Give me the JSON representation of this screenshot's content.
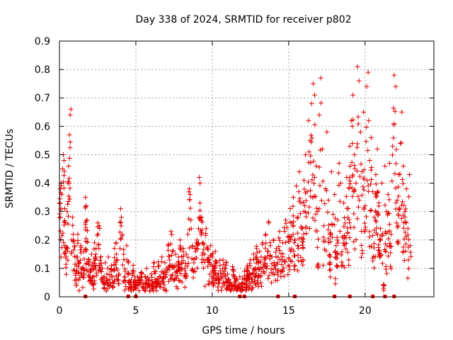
{
  "chart_data": {
    "type": "scatter",
    "title": "Day 338 of 2024, SRMTID for receiver p802",
    "xlabel": "GPS time / hours",
    "ylabel": "SRMTID / TECUs",
    "xlim": [
      0,
      24.5
    ],
    "ylim": [
      0,
      0.9
    ],
    "xticks": [
      0,
      5,
      10,
      15,
      20
    ],
    "yticks": [
      0,
      0.1,
      0.2,
      0.3,
      0.4,
      0.5,
      0.6,
      0.7,
      0.8,
      0.9
    ],
    "ytick_labels": [
      "0",
      "0.1",
      "0.2",
      "0.3",
      "0.4",
      "0.5",
      "0.6",
      "0.7",
      "0.8",
      "0.9"
    ],
    "grid": true,
    "marker": "+",
    "color": "#e00000",
    "series": [
      {
        "name": "SRMTID",
        "points": [
          [
            0.0,
            0.33
          ],
          [
            0.05,
            0.38
          ],
          [
            0.1,
            0.4
          ],
          [
            0.15,
            0.36
          ],
          [
            0.2,
            0.45
          ],
          [
            0.25,
            0.5
          ],
          [
            0.3,
            0.48
          ],
          [
            0.35,
            0.31
          ],
          [
            0.4,
            0.26
          ],
          [
            0.45,
            0.17
          ],
          [
            0.5,
            0.3
          ],
          [
            0.55,
            0.4
          ],
          [
            0.6,
            0.46
          ],
          [
            0.65,
            0.57
          ],
          [
            0.7,
            0.64
          ],
          [
            0.75,
            0.66
          ],
          [
            0.8,
            0.2
          ],
          [
            0.85,
            0.28
          ],
          [
            0.9,
            0.22
          ],
          [
            1.0,
            0.18
          ],
          [
            1.1,
            0.14
          ],
          [
            1.2,
            0.22
          ],
          [
            1.3,
            0.12
          ],
          [
            1.4,
            0.18
          ],
          [
            1.5,
            0.1
          ],
          [
            1.6,
            0.16
          ],
          [
            1.7,
            0.35
          ],
          [
            1.75,
            0.32
          ],
          [
            1.8,
            0.27
          ],
          [
            1.9,
            0.13
          ],
          [
            2.0,
            0.09
          ],
          [
            2.1,
            0.15
          ],
          [
            2.2,
            0.12
          ],
          [
            2.3,
            0.19
          ],
          [
            2.4,
            0.17
          ],
          [
            2.5,
            0.26
          ],
          [
            2.6,
            0.25
          ],
          [
            2.7,
            0.14
          ],
          [
            2.8,
            0.1
          ],
          [
            2.9,
            0.07
          ],
          [
            3.0,
            0.12
          ],
          [
            3.1,
            0.08
          ],
          [
            3.2,
            0.14
          ],
          [
            3.3,
            0.06
          ],
          [
            3.4,
            0.11
          ],
          [
            3.5,
            0.05
          ],
          [
            3.6,
            0.17
          ],
          [
            3.7,
            0.19
          ],
          [
            3.8,
            0.13
          ],
          [
            3.9,
            0.08
          ],
          [
            4.0,
            0.31
          ],
          [
            4.05,
            0.28
          ],
          [
            4.1,
            0.22
          ],
          [
            4.2,
            0.15
          ],
          [
            4.3,
            0.09
          ],
          [
            4.4,
            0.18
          ],
          [
            4.5,
            0.12
          ],
          [
            4.6,
            0.05
          ],
          [
            4.7,
            0.06
          ],
          [
            4.8,
            0.09
          ],
          [
            4.9,
            0.05
          ],
          [
            5.0,
            0.04
          ],
          [
            5.1,
            0.07
          ],
          [
            5.2,
            0.05
          ],
          [
            5.4,
            0.08
          ],
          [
            5.5,
            0.03
          ],
          [
            5.6,
            0.07
          ],
          [
            5.7,
            0.1
          ],
          [
            5.8,
            0.06
          ],
          [
            5.9,
            0.04
          ],
          [
            6.0,
            0.08
          ],
          [
            6.1,
            0.05
          ],
          [
            6.2,
            0.12
          ],
          [
            6.3,
            0.09
          ],
          [
            6.4,
            0.06
          ],
          [
            6.5,
            0.11
          ],
          [
            6.6,
            0.07
          ],
          [
            6.7,
            0.14
          ],
          [
            6.8,
            0.08
          ],
          [
            6.9,
            0.12
          ],
          [
            7.0,
            0.1
          ],
          [
            7.1,
            0.18
          ],
          [
            7.2,
            0.13
          ],
          [
            7.3,
            0.23
          ],
          [
            7.4,
            0.16
          ],
          [
            7.5,
            0.11
          ],
          [
            7.6,
            0.15
          ],
          [
            7.7,
            0.09
          ],
          [
            7.8,
            0.14
          ],
          [
            7.9,
            0.2
          ],
          [
            8.0,
            0.12
          ],
          [
            8.1,
            0.17
          ],
          [
            8.2,
            0.1
          ],
          [
            8.3,
            0.15
          ],
          [
            8.4,
            0.22
          ],
          [
            8.5,
            0.38
          ],
          [
            8.55,
            0.36
          ],
          [
            8.6,
            0.27
          ],
          [
            8.7,
            0.18
          ],
          [
            8.8,
            0.12
          ],
          [
            8.9,
            0.16
          ],
          [
            9.0,
            0.2
          ],
          [
            9.1,
            0.24
          ],
          [
            9.15,
            0.42
          ],
          [
            9.2,
            0.4
          ],
          [
            9.3,
            0.28
          ],
          [
            9.4,
            0.19
          ],
          [
            9.5,
            0.15
          ],
          [
            9.6,
            0.24
          ],
          [
            9.7,
            0.17
          ],
          [
            9.8,
            0.13
          ],
          [
            9.9,
            0.18
          ],
          [
            10.0,
            0.14
          ],
          [
            10.1,
            0.1
          ],
          [
            10.2,
            0.16
          ],
          [
            10.3,
            0.12
          ],
          [
            10.4,
            0.08
          ],
          [
            10.5,
            0.11
          ],
          [
            10.6,
            0.07
          ],
          [
            10.7,
            0.13
          ],
          [
            10.8,
            0.09
          ],
          [
            10.9,
            0.12
          ],
          [
            11.0,
            0.08
          ],
          [
            11.2,
            0.05
          ],
          [
            11.4,
            0.09
          ],
          [
            11.5,
            0.04
          ],
          [
            11.6,
            0.06
          ],
          [
            11.7,
            0.03
          ],
          [
            11.8,
            0.07
          ],
          [
            11.9,
            0.02
          ],
          [
            12.0,
            0.05
          ],
          [
            12.1,
            0.09
          ],
          [
            12.2,
            0.06
          ],
          [
            12.3,
            0.11
          ],
          [
            12.4,
            0.07
          ],
          [
            12.5,
            0.13
          ],
          [
            12.6,
            0.08
          ],
          [
            12.7,
            0.15
          ],
          [
            12.8,
            0.1
          ],
          [
            12.9,
            0.17
          ],
          [
            13.0,
            0.12
          ],
          [
            13.1,
            0.16
          ],
          [
            13.2,
            0.14
          ],
          [
            13.3,
            0.19
          ],
          [
            13.4,
            0.13
          ],
          [
            13.5,
            0.22
          ],
          [
            13.6,
            0.16
          ],
          [
            13.7,
            0.26
          ],
          [
            13.8,
            0.18
          ],
          [
            13.9,
            0.14
          ],
          [
            14.0,
            0.2
          ],
          [
            14.2,
            0.17
          ],
          [
            14.4,
            0.23
          ],
          [
            14.6,
            0.19
          ],
          [
            14.8,
            0.27
          ],
          [
            15.0,
            0.21
          ],
          [
            15.1,
            0.31
          ],
          [
            15.2,
            0.26
          ],
          [
            15.3,
            0.35
          ],
          [
            15.4,
            0.2
          ],
          [
            15.5,
            0.39
          ],
          [
            15.6,
            0.28
          ],
          [
            15.7,
            0.44
          ],
          [
            15.8,
            0.33
          ],
          [
            15.9,
            0.24
          ],
          [
            16.0,
            0.41
          ],
          [
            16.1,
            0.5
          ],
          [
            16.2,
            0.37
          ],
          [
            16.3,
            0.62
          ],
          [
            16.4,
            0.55
          ],
          [
            16.5,
            0.68
          ],
          [
            16.6,
            0.75
          ],
          [
            16.7,
            0.71
          ],
          [
            16.8,
            0.46
          ],
          [
            16.9,
            0.3
          ],
          [
            17.0,
            0.64
          ],
          [
            17.1,
            0.77
          ],
          [
            17.2,
            0.52
          ],
          [
            17.3,
            0.25
          ],
          [
            17.4,
            0.38
          ],
          [
            17.5,
            0.58
          ],
          [
            17.6,
            0.34
          ],
          [
            17.7,
            0.22
          ],
          [
            17.8,
            0.44
          ],
          [
            17.9,
            0.29
          ],
          [
            18.0,
            0.36
          ],
          [
            18.1,
            0.18
          ],
          [
            18.2,
            0.27
          ],
          [
            18.3,
            0.47
          ],
          [
            18.4,
            0.4
          ],
          [
            18.5,
            0.21
          ],
          [
            18.6,
            0.33
          ],
          [
            18.7,
            0.26
          ],
          [
            18.8,
            0.42
          ],
          [
            18.9,
            0.31
          ],
          [
            19.0,
            0.53
          ],
          [
            19.1,
            0.62
          ],
          [
            19.2,
            0.71
          ],
          [
            19.3,
            0.5
          ],
          [
            19.4,
            0.4
          ],
          [
            19.5,
            0.81
          ],
          [
            19.6,
            0.76
          ],
          [
            19.7,
            0.58
          ],
          [
            19.8,
            0.44
          ],
          [
            19.9,
            0.65
          ],
          [
            20.0,
            0.32
          ],
          [
            20.1,
            0.74
          ],
          [
            20.2,
            0.79
          ],
          [
            20.3,
            0.48
          ],
          [
            20.4,
            0.56
          ],
          [
            20.5,
            0.37
          ],
          [
            20.6,
            0.28
          ],
          [
            20.7,
            0.43
          ],
          [
            20.8,
            0.52
          ],
          [
            20.9,
            0.33
          ],
          [
            21.0,
            0.24
          ],
          [
            21.1,
            0.4
          ],
          [
            21.2,
            0.03
          ],
          [
            21.3,
            0.46
          ],
          [
            21.4,
            0.3
          ],
          [
            21.5,
            0.36
          ],
          [
            21.6,
            0.47
          ],
          [
            21.7,
            0.22
          ],
          [
            21.8,
            0.53
          ],
          [
            21.9,
            0.78
          ],
          [
            22.0,
            0.74
          ],
          [
            22.1,
            0.34
          ],
          [
            22.2,
            0.43
          ],
          [
            22.3,
            0.54
          ],
          [
            22.4,
            0.65
          ],
          [
            22.5,
            0.46
          ],
          [
            22.6,
            0.3
          ],
          [
            22.7,
            0.38
          ],
          [
            22.8,
            0.24
          ],
          [
            22.9,
            0.43
          ],
          [
            22.95,
            0.18
          ]
        ]
      }
    ],
    "zero_markers": [
      1.7,
      4.5,
      5.0,
      11.8,
      12.1,
      14.3,
      15.4,
      18.0,
      19.0,
      20.5,
      21.3,
      21.9
    ]
  }
}
